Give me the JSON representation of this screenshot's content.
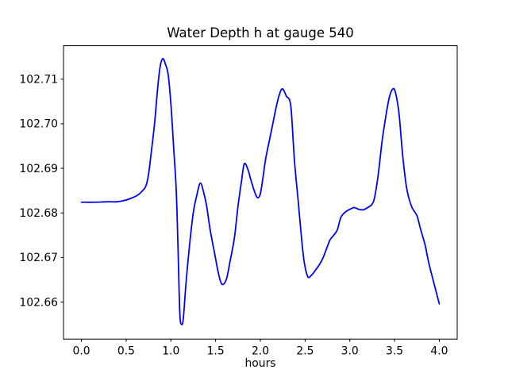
{
  "figure": {
    "background": "#ffffff",
    "axis_color": "#000000",
    "text_color": "#000000"
  },
  "chart_data": {
    "type": "line",
    "title": "Water Depth h at gauge 540",
    "xlabel": "hours",
    "ylabel": "",
    "grid": false,
    "legend": null,
    "xlim": [
      -0.2,
      4.2
    ],
    "ylim": [
      102.6517,
      102.7175
    ],
    "xticks": {
      "values": [
        0.0,
        0.5,
        1.0,
        1.5,
        2.0,
        2.5,
        3.0,
        3.5,
        4.0
      ],
      "labels": [
        "0.0",
        "0.5",
        "1.0",
        "1.5",
        "2.0",
        "2.5",
        "3.0",
        "3.5",
        "4.0"
      ]
    },
    "yticks": {
      "values": [
        102.66,
        102.67,
        102.68,
        102.69,
        102.7,
        102.71
      ],
      "labels": [
        "102.66",
        "102.67",
        "102.68",
        "102.69",
        "102.70",
        "102.71"
      ]
    },
    "series": [
      {
        "name": "h",
        "color": "#0000ff",
        "x": [
          0.0,
          0.15,
          0.3,
          0.4,
          0.5,
          0.57,
          0.63,
          0.68,
          0.72,
          0.75,
          0.78,
          0.82,
          0.85,
          0.88,
          0.91,
          0.94,
          0.97,
          1.0,
          1.03,
          1.06,
          1.08,
          1.1,
          1.12,
          1.14,
          1.17,
          1.21,
          1.25,
          1.29,
          1.33,
          1.37,
          1.4,
          1.44,
          1.49,
          1.53,
          1.57,
          1.62,
          1.66,
          1.71,
          1.75,
          1.79,
          1.82,
          1.86,
          1.9,
          1.94,
          1.97,
          2.0,
          2.03,
          2.06,
          2.12,
          2.18,
          2.22,
          2.25,
          2.29,
          2.34,
          2.38,
          2.42,
          2.46,
          2.49,
          2.53,
          2.57,
          2.61,
          2.66,
          2.7,
          2.74,
          2.78,
          2.82,
          2.86,
          2.9,
          2.95,
          3.0,
          3.05,
          3.1,
          3.15,
          3.2,
          3.25,
          3.28,
          3.32,
          3.36,
          3.4,
          3.44,
          3.48,
          3.51,
          3.55,
          3.59,
          3.63,
          3.66,
          3.7,
          3.75,
          3.79,
          3.84,
          3.88,
          3.93,
          3.97,
          4.0
        ],
        "y": [
          102.6824,
          102.6824,
          102.6825,
          102.6825,
          102.6829,
          102.6834,
          102.684,
          102.6849,
          102.686,
          102.6886,
          102.6934,
          102.7005,
          102.7075,
          102.7128,
          102.7146,
          102.7133,
          102.711,
          102.7045,
          102.695,
          102.685,
          102.672,
          102.6575,
          102.655,
          102.6565,
          102.6645,
          102.673,
          102.68,
          102.684,
          102.6867,
          102.6843,
          102.6815,
          102.6761,
          102.6708,
          102.6666,
          102.664,
          102.6651,
          102.669,
          102.6744,
          102.6815,
          102.6872,
          102.691,
          102.6898,
          102.687,
          102.6845,
          102.6834,
          102.6843,
          102.688,
          102.6922,
          102.6981,
          102.704,
          102.707,
          102.7078,
          102.7062,
          102.704,
          102.692,
          102.6833,
          102.6744,
          102.669,
          102.6657,
          102.666,
          102.667,
          102.6684,
          102.6699,
          102.672,
          102.674,
          102.675,
          102.6762,
          102.679,
          102.6802,
          102.6808,
          102.6812,
          102.6808,
          102.6807,
          102.6812,
          102.682,
          102.6838,
          102.689,
          102.696,
          102.7014,
          102.7058,
          102.7078,
          102.707,
          102.7022,
          102.693,
          102.6862,
          102.6833,
          102.681,
          102.6794,
          102.6764,
          102.6729,
          102.669,
          102.665,
          102.6619,
          102.6596
        ]
      }
    ]
  }
}
